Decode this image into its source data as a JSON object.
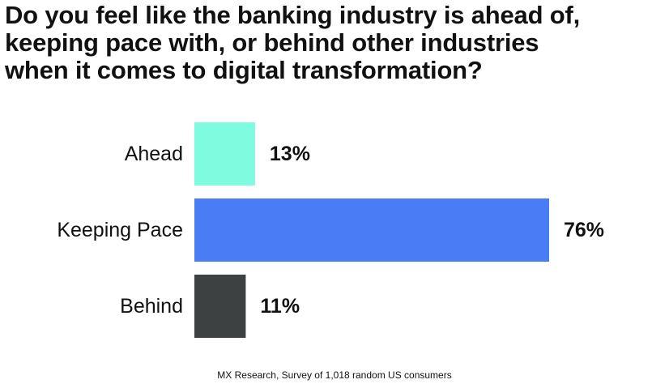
{
  "title_lines": [
    "Do you feel like the banking industry is ahead of,",
    "keeping pace with, or behind other industries",
    "when it comes to digital transformation?"
  ],
  "source": "MX Research, Survey of 1,018 random US consumers",
  "chart_data": {
    "type": "bar",
    "orientation": "horizontal",
    "title": "Do you feel like the banking industry is ahead of, keeping pace with, or behind other industries when it comes to digital transformation?",
    "categories": [
      "Ahead",
      "Keeping Pace",
      "Behind"
    ],
    "values": [
      13,
      76,
      11
    ],
    "value_labels": [
      "13%",
      "76%",
      "11%"
    ],
    "unit": "%",
    "colors": [
      "#7ffbe0",
      "#4a7cf6",
      "#3d4142"
    ],
    "xlim": [
      0,
      76
    ],
    "grid": false,
    "legend": "none"
  }
}
